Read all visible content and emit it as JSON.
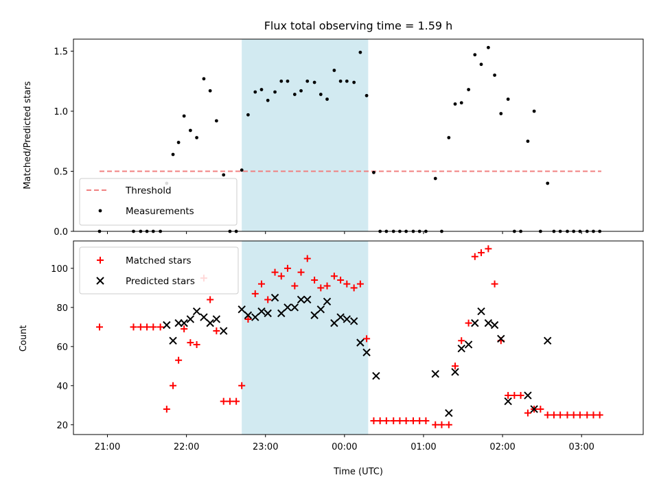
{
  "chart_data": [
    {
      "type": "scatter",
      "title": "Flux total observing time = 1.59 h",
      "xlabel": "",
      "ylabel": "Matched/Predicted stars",
      "x_unit": "hours since 21:00 UTC (axis shown as clock time)",
      "xlim": [
        -0.43,
        6.78
      ],
      "ylim": [
        0,
        1.6
      ],
      "yticks": [
        "0.0",
        "0.5",
        "1.0",
        "1.5"
      ],
      "highlight_span": [
        1.7,
        3.3
      ],
      "highlight_color": "#add8e6",
      "threshold": {
        "name": "Threshold",
        "y": 0.5,
        "x": [
          -0.1,
          6.25
        ],
        "color": "#f08080"
      },
      "series": [
        {
          "name": "Measurements",
          "color": "#000000",
          "marker": "dot",
          "points": [
            [
              -0.1,
              0
            ],
            [
              0.33,
              0
            ],
            [
              0.42,
              0
            ],
            [
              0.5,
              0
            ],
            [
              0.58,
              0
            ],
            [
              0.67,
              0
            ],
            [
              0.75,
              0.4
            ],
            [
              0.83,
              0.64
            ],
            [
              0.9,
              0.74
            ],
            [
              0.97,
              0.96
            ],
            [
              1.05,
              0.84
            ],
            [
              1.13,
              0.78
            ],
            [
              1.22,
              1.27
            ],
            [
              1.3,
              1.17
            ],
            [
              1.38,
              0.92
            ],
            [
              1.47,
              0.47
            ],
            [
              1.55,
              0
            ],
            [
              1.63,
              0
            ],
            [
              1.7,
              0.51
            ],
            [
              1.78,
              0.97
            ],
            [
              1.87,
              1.16
            ],
            [
              1.95,
              1.18
            ],
            [
              2.03,
              1.09
            ],
            [
              2.12,
              1.16
            ],
            [
              2.2,
              1.25
            ],
            [
              2.28,
              1.25
            ],
            [
              2.37,
              1.14
            ],
            [
              2.45,
              1.17
            ],
            [
              2.53,
              1.25
            ],
            [
              2.62,
              1.24
            ],
            [
              2.7,
              1.14
            ],
            [
              2.78,
              1.1
            ],
            [
              2.87,
              1.34
            ],
            [
              2.95,
              1.25
            ],
            [
              3.03,
              1.25
            ],
            [
              3.12,
              1.24
            ],
            [
              3.2,
              1.49
            ],
            [
              3.28,
              1.13
            ],
            [
              3.37,
              0.49
            ],
            [
              3.45,
              0
            ],
            [
              3.53,
              0
            ],
            [
              3.62,
              0
            ],
            [
              3.7,
              0
            ],
            [
              3.78,
              0
            ],
            [
              3.87,
              0
            ],
            [
              3.95,
              0
            ],
            [
              4.03,
              0
            ],
            [
              4.15,
              0.44
            ],
            [
              4.23,
              0
            ],
            [
              4.32,
              0.78
            ],
            [
              4.4,
              1.06
            ],
            [
              4.48,
              1.07
            ],
            [
              4.57,
              1.18
            ],
            [
              4.65,
              1.47
            ],
            [
              4.73,
              1.39
            ],
            [
              4.82,
              1.53
            ],
            [
              4.9,
              1.3
            ],
            [
              4.98,
              0.98
            ],
            [
              5.07,
              1.1
            ],
            [
              5.15,
              0
            ],
            [
              5.23,
              0
            ],
            [
              5.32,
              0.75
            ],
            [
              5.4,
              1.0
            ],
            [
              5.48,
              0
            ],
            [
              5.57,
              0.4
            ],
            [
              5.65,
              0
            ],
            [
              5.73,
              0
            ],
            [
              5.82,
              0
            ],
            [
              5.9,
              0
            ],
            [
              5.98,
              0
            ],
            [
              6.07,
              0
            ],
            [
              6.15,
              0
            ],
            [
              6.23,
              0
            ]
          ]
        }
      ],
      "legend": {
        "placement": "lower left"
      }
    },
    {
      "type": "scatter",
      "title": "",
      "xlabel": "Time (UTC)",
      "ylabel": "Count",
      "x_unit": "hours since 21:00 UTC (axis shown as clock time)",
      "xlim": [
        -0.43,
        6.78
      ],
      "ylim": [
        15,
        114
      ],
      "xticks": [
        {
          "x": 0,
          "label": "21:00"
        },
        {
          "x": 1,
          "label": "22:00"
        },
        {
          "x": 2,
          "label": "23:00"
        },
        {
          "x": 3,
          "label": "00:00"
        },
        {
          "x": 4,
          "label": "01:00"
        },
        {
          "x": 5,
          "label": "02:00"
        },
        {
          "x": 6,
          "label": "03:00"
        }
      ],
      "yticks": [
        "20",
        "40",
        "60",
        "80",
        "100"
      ],
      "highlight_span": [
        1.7,
        3.3
      ],
      "series": [
        {
          "name": "Matched stars",
          "color": "#ff0000",
          "marker": "plus",
          "points": [
            [
              -0.1,
              70
            ],
            [
              0.33,
              70
            ],
            [
              0.42,
              70
            ],
            [
              0.5,
              70
            ],
            [
              0.58,
              70
            ],
            [
              0.67,
              70
            ],
            [
              0.75,
              28
            ],
            [
              0.83,
              40
            ],
            [
              0.9,
              53
            ],
            [
              0.97,
              69
            ],
            [
              1.05,
              62
            ],
            [
              1.13,
              61
            ],
            [
              1.22,
              95
            ],
            [
              1.3,
              84
            ],
            [
              1.38,
              68
            ],
            [
              1.47,
              32
            ],
            [
              1.55,
              32
            ],
            [
              1.63,
              32
            ],
            [
              1.7,
              40
            ],
            [
              1.78,
              74
            ],
            [
              1.87,
              87
            ],
            [
              1.95,
              92
            ],
            [
              2.03,
              84
            ],
            [
              2.12,
              98
            ],
            [
              2.2,
              96
            ],
            [
              2.28,
              100
            ],
            [
              2.37,
              91
            ],
            [
              2.45,
              98
            ],
            [
              2.53,
              105
            ],
            [
              2.62,
              94
            ],
            [
              2.7,
              90
            ],
            [
              2.78,
              91
            ],
            [
              2.87,
              96
            ],
            [
              2.95,
              94
            ],
            [
              3.03,
              92
            ],
            [
              3.12,
              90
            ],
            [
              3.2,
              92
            ],
            [
              3.28,
              64
            ],
            [
              3.37,
              22
            ],
            [
              3.45,
              22
            ],
            [
              3.53,
              22
            ],
            [
              3.62,
              22
            ],
            [
              3.7,
              22
            ],
            [
              3.78,
              22
            ],
            [
              3.87,
              22
            ],
            [
              3.95,
              22
            ],
            [
              4.03,
              22
            ],
            [
              4.15,
              20
            ],
            [
              4.23,
              20
            ],
            [
              4.32,
              20
            ],
            [
              4.4,
              50
            ],
            [
              4.48,
              63
            ],
            [
              4.57,
              72
            ],
            [
              4.65,
              106
            ],
            [
              4.73,
              108
            ],
            [
              4.82,
              110
            ],
            [
              4.9,
              92
            ],
            [
              4.98,
              63
            ],
            [
              5.07,
              35
            ],
            [
              5.15,
              35
            ],
            [
              5.23,
              35
            ],
            [
              5.32,
              26
            ],
            [
              5.4,
              28
            ],
            [
              5.48,
              28
            ],
            [
              5.57,
              25
            ],
            [
              5.65,
              25
            ],
            [
              5.73,
              25
            ],
            [
              5.82,
              25
            ],
            [
              5.9,
              25
            ],
            [
              5.98,
              25
            ],
            [
              6.07,
              25
            ],
            [
              6.15,
              25
            ],
            [
              6.23,
              25
            ]
          ]
        },
        {
          "name": "Predicted stars",
          "color": "#000000",
          "marker": "x",
          "points": [
            [
              0.75,
              71
            ],
            [
              0.83,
              63
            ],
            [
              0.9,
              72
            ],
            [
              0.97,
              72
            ],
            [
              1.05,
              74
            ],
            [
              1.13,
              78
            ],
            [
              1.22,
              75
            ],
            [
              1.3,
              72
            ],
            [
              1.38,
              74
            ],
            [
              1.47,
              68
            ],
            [
              1.7,
              79
            ],
            [
              1.78,
              76
            ],
            [
              1.87,
              75
            ],
            [
              1.95,
              78
            ],
            [
              2.03,
              77
            ],
            [
              2.12,
              85
            ],
            [
              2.2,
              77
            ],
            [
              2.28,
              80
            ],
            [
              2.37,
              80
            ],
            [
              2.45,
              84
            ],
            [
              2.53,
              84
            ],
            [
              2.62,
              76
            ],
            [
              2.7,
              79
            ],
            [
              2.78,
              83
            ],
            [
              2.87,
              72
            ],
            [
              2.95,
              75
            ],
            [
              3.03,
              74
            ],
            [
              3.12,
              73
            ],
            [
              3.2,
              62
            ],
            [
              3.28,
              57
            ],
            [
              3.4,
              45
            ],
            [
              4.15,
              46
            ],
            [
              4.32,
              26
            ],
            [
              4.4,
              47
            ],
            [
              4.48,
              59
            ],
            [
              4.57,
              61
            ],
            [
              4.65,
              72
            ],
            [
              4.73,
              78
            ],
            [
              4.82,
              72
            ],
            [
              4.9,
              71
            ],
            [
              4.98,
              64
            ],
            [
              5.07,
              32
            ],
            [
              5.32,
              35
            ],
            [
              5.4,
              28
            ],
            [
              5.57,
              63
            ]
          ]
        }
      ],
      "legend": {
        "placement": "upper left"
      }
    }
  ]
}
